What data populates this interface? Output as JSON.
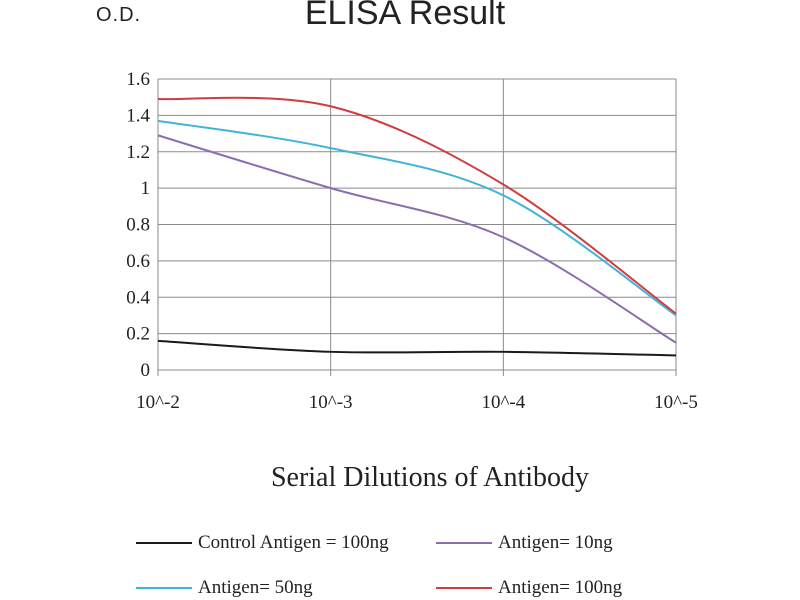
{
  "chart_data": {
    "type": "line",
    "title": "ELISA Result",
    "ylabel": "O.D.",
    "xlabel": "Serial Dilutions of Antibody",
    "categories": [
      "10^-2",
      "10^-3",
      "10^-4",
      "10^-5"
    ],
    "ylim": [
      0,
      1.6
    ],
    "yticks": [
      "0",
      "0.2",
      "0.4",
      "0.6",
      "0.8",
      "1",
      "1.2",
      "1.4",
      "1.6"
    ],
    "grid": true,
    "legend_position": "bottom",
    "series": [
      {
        "name": "Control Antigen = 100ng",
        "color": "#1a1a1a",
        "values": [
          0.16,
          0.1,
          0.1,
          0.08
        ]
      },
      {
        "name": "Antigen= 10ng",
        "color": "#8b6db0",
        "values": [
          1.29,
          1.0,
          0.73,
          0.15
        ]
      },
      {
        "name": "Antigen= 50ng",
        "color": "#3fb3d8",
        "values": [
          1.37,
          1.22,
          0.96,
          0.3
        ]
      },
      {
        "name": "Antigen= 100ng",
        "color": "#d23c3c",
        "values": [
          1.49,
          1.45,
          1.02,
          0.31
        ]
      }
    ]
  }
}
